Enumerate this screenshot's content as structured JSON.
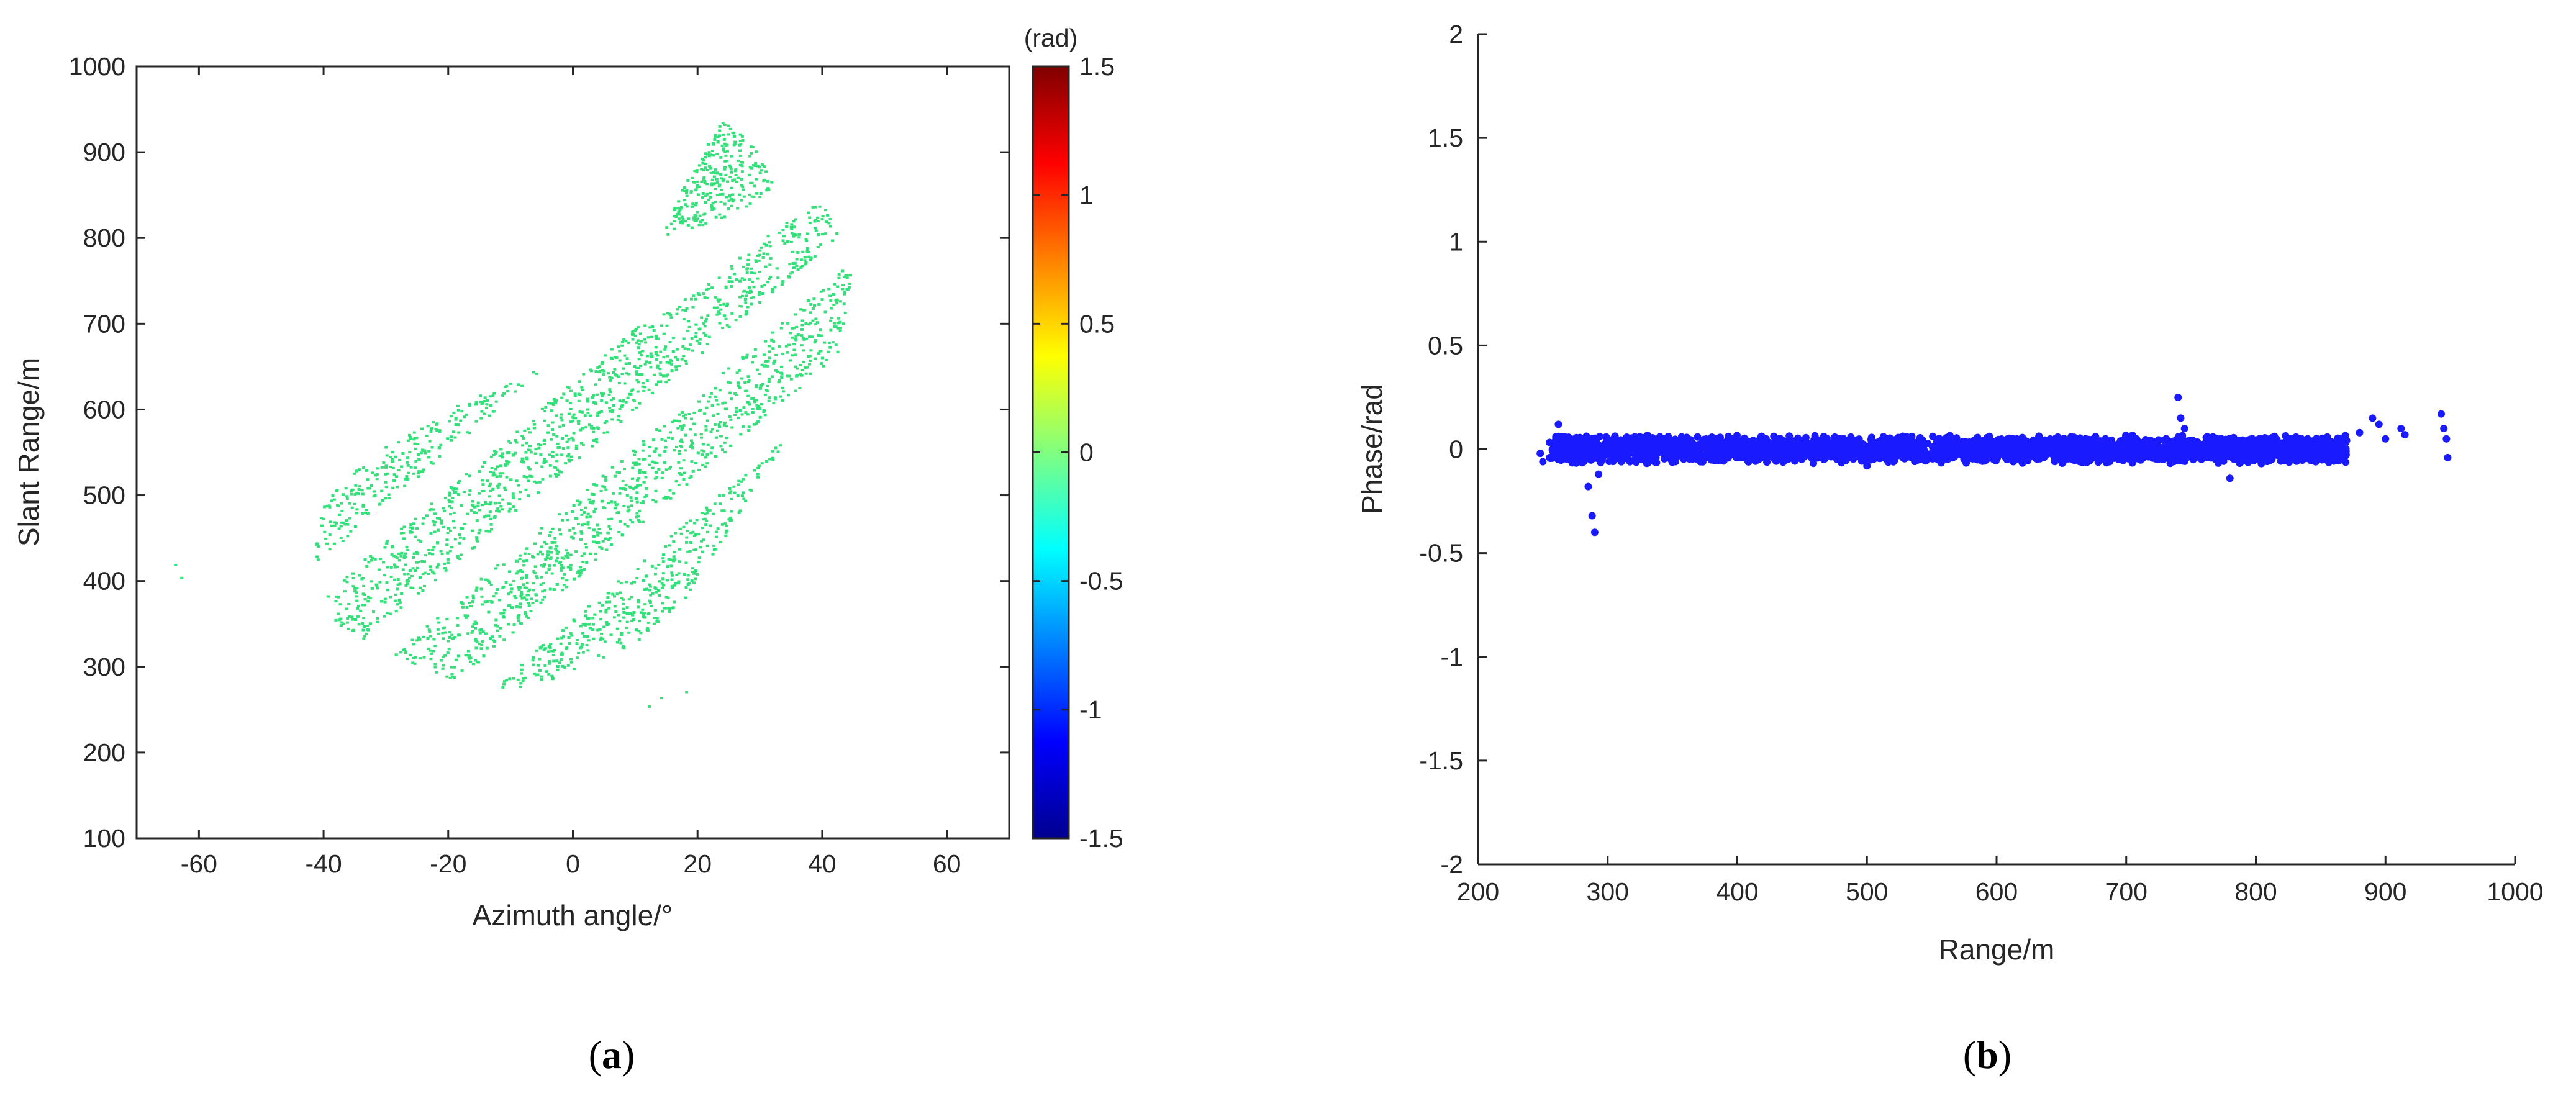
{
  "colors": {
    "scatter_a": "#34e07a",
    "scatter_b": "#1a1aff",
    "axis": "#262626",
    "colormap": [
      "#00008f",
      "#0000ff",
      "#0080ff",
      "#00ffff",
      "#80ff80",
      "#ffff00",
      "#ff8000",
      "#ff0000",
      "#800000"
    ]
  },
  "chart_data": [
    {
      "type": "scatter",
      "panel_label": "a",
      "xlabel": "Azimuth angle/°",
      "ylabel": "Slant Range/m",
      "xlim": [
        -70,
        70
      ],
      "ylim": [
        100,
        1000
      ],
      "xticks": [
        -60,
        -40,
        -20,
        0,
        20,
        40,
        60
      ],
      "yticks": [
        100,
        200,
        300,
        400,
        500,
        600,
        700,
        800,
        900,
        1000
      ],
      "grid": false,
      "colorbar": {
        "unit_label": "(rad)",
        "range": [
          -1.5,
          1.5
        ],
        "ticks": [
          -1.5,
          -1,
          -0.5,
          0,
          0.5,
          1,
          1.5
        ]
      },
      "point_value": 0,
      "region_outline": [
        [
          -38,
          350
        ],
        [
          -42,
          430
        ],
        [
          -40,
          500
        ],
        [
          -30,
          560
        ],
        [
          -18,
          610
        ],
        [
          -5,
          650
        ],
        [
          8,
          690
        ],
        [
          20,
          740
        ],
        [
          32,
          810
        ],
        [
          40,
          845
        ],
        [
          45,
          760
        ],
        [
          42,
          660
        ],
        [
          36,
          590
        ],
        [
          30,
          520
        ],
        [
          24,
          450
        ],
        [
          18,
          380
        ],
        [
          10,
          330
        ],
        [
          -2,
          290
        ],
        [
          -10,
          275
        ],
        [
          -20,
          285
        ],
        [
          -28,
          310
        ]
      ],
      "upper_lobe": [
        [
          14,
          800
        ],
        [
          18,
          870
        ],
        [
          24,
          940
        ],
        [
          30,
          900
        ],
        [
          32,
          860
        ],
        [
          26,
          830
        ]
      ],
      "isolated_points": [
        [
          -64,
          420
        ],
        [
          -63,
          405
        ],
        [
          12,
          255
        ],
        [
          14,
          265
        ],
        [
          18,
          272
        ]
      ]
    },
    {
      "type": "scatter",
      "panel_label": "b",
      "xlabel": "Range/m",
      "ylabel": "Phase/rad",
      "xlim": [
        200,
        1000
      ],
      "ylim": [
        -2,
        2
      ],
      "xticks": [
        200,
        300,
        400,
        500,
        600,
        700,
        800,
        900,
        1000
      ],
      "yticks": [
        -2,
        -1.5,
        -1,
        -0.5,
        0,
        0.5,
        1,
        1.5,
        2
      ],
      "grid": false,
      "series": [
        {
          "points": [
            [
              248,
              -0.02
            ],
            [
              250,
              -0.06
            ],
            [
              256,
              -0.04
            ],
            [
              260,
              0.06
            ],
            [
              262,
              0.12
            ],
            [
              265,
              0.04
            ],
            [
              270,
              0.02
            ],
            [
              275,
              -0.04
            ],
            [
              280,
              -0.06
            ],
            [
              285,
              -0.18
            ],
            [
              288,
              -0.32
            ],
            [
              290,
              -0.4
            ],
            [
              293,
              -0.12
            ],
            [
              300,
              0.05
            ],
            [
              320,
              0.04
            ],
            [
              340,
              0.0
            ],
            [
              360,
              0.02
            ],
            [
              380,
              -0.02
            ],
            [
              400,
              0.03
            ],
            [
              420,
              -0.04
            ],
            [
              440,
              0.02
            ],
            [
              460,
              -0.03
            ],
            [
              480,
              0.03
            ],
            [
              500,
              -0.08
            ],
            [
              520,
              0.04
            ],
            [
              540,
              -0.05
            ],
            [
              560,
              0.02
            ],
            [
              580,
              -0.04
            ],
            [
              600,
              0.03
            ],
            [
              620,
              -0.06
            ],
            [
              640,
              0.02
            ],
            [
              660,
              -0.03
            ],
            [
              680,
              0.04
            ],
            [
              700,
              0.0
            ],
            [
              720,
              0.02
            ],
            [
              740,
              0.25
            ],
            [
              742,
              0.15
            ],
            [
              745,
              0.1
            ],
            [
              760,
              -0.02
            ],
            [
              780,
              -0.14
            ],
            [
              790,
              0.04
            ],
            [
              800,
              0.03
            ],
            [
              820,
              -0.04
            ],
            [
              840,
              0.05
            ],
            [
              860,
              0.02
            ],
            [
              880,
              0.08
            ],
            [
              890,
              0.15
            ],
            [
              895,
              0.12
            ],
            [
              900,
              0.05
            ],
            [
              912,
              0.1
            ],
            [
              915,
              0.07
            ],
            [
              943,
              0.17
            ],
            [
              945,
              0.1
            ],
            [
              947,
              0.05
            ],
            [
              948,
              -0.04
            ]
          ],
          "band_center": [
            [
              250,
              0.0
            ],
            [
              1000,
              0.0
            ]
          ],
          "band_halfwidth": 0.05
        }
      ]
    }
  ]
}
